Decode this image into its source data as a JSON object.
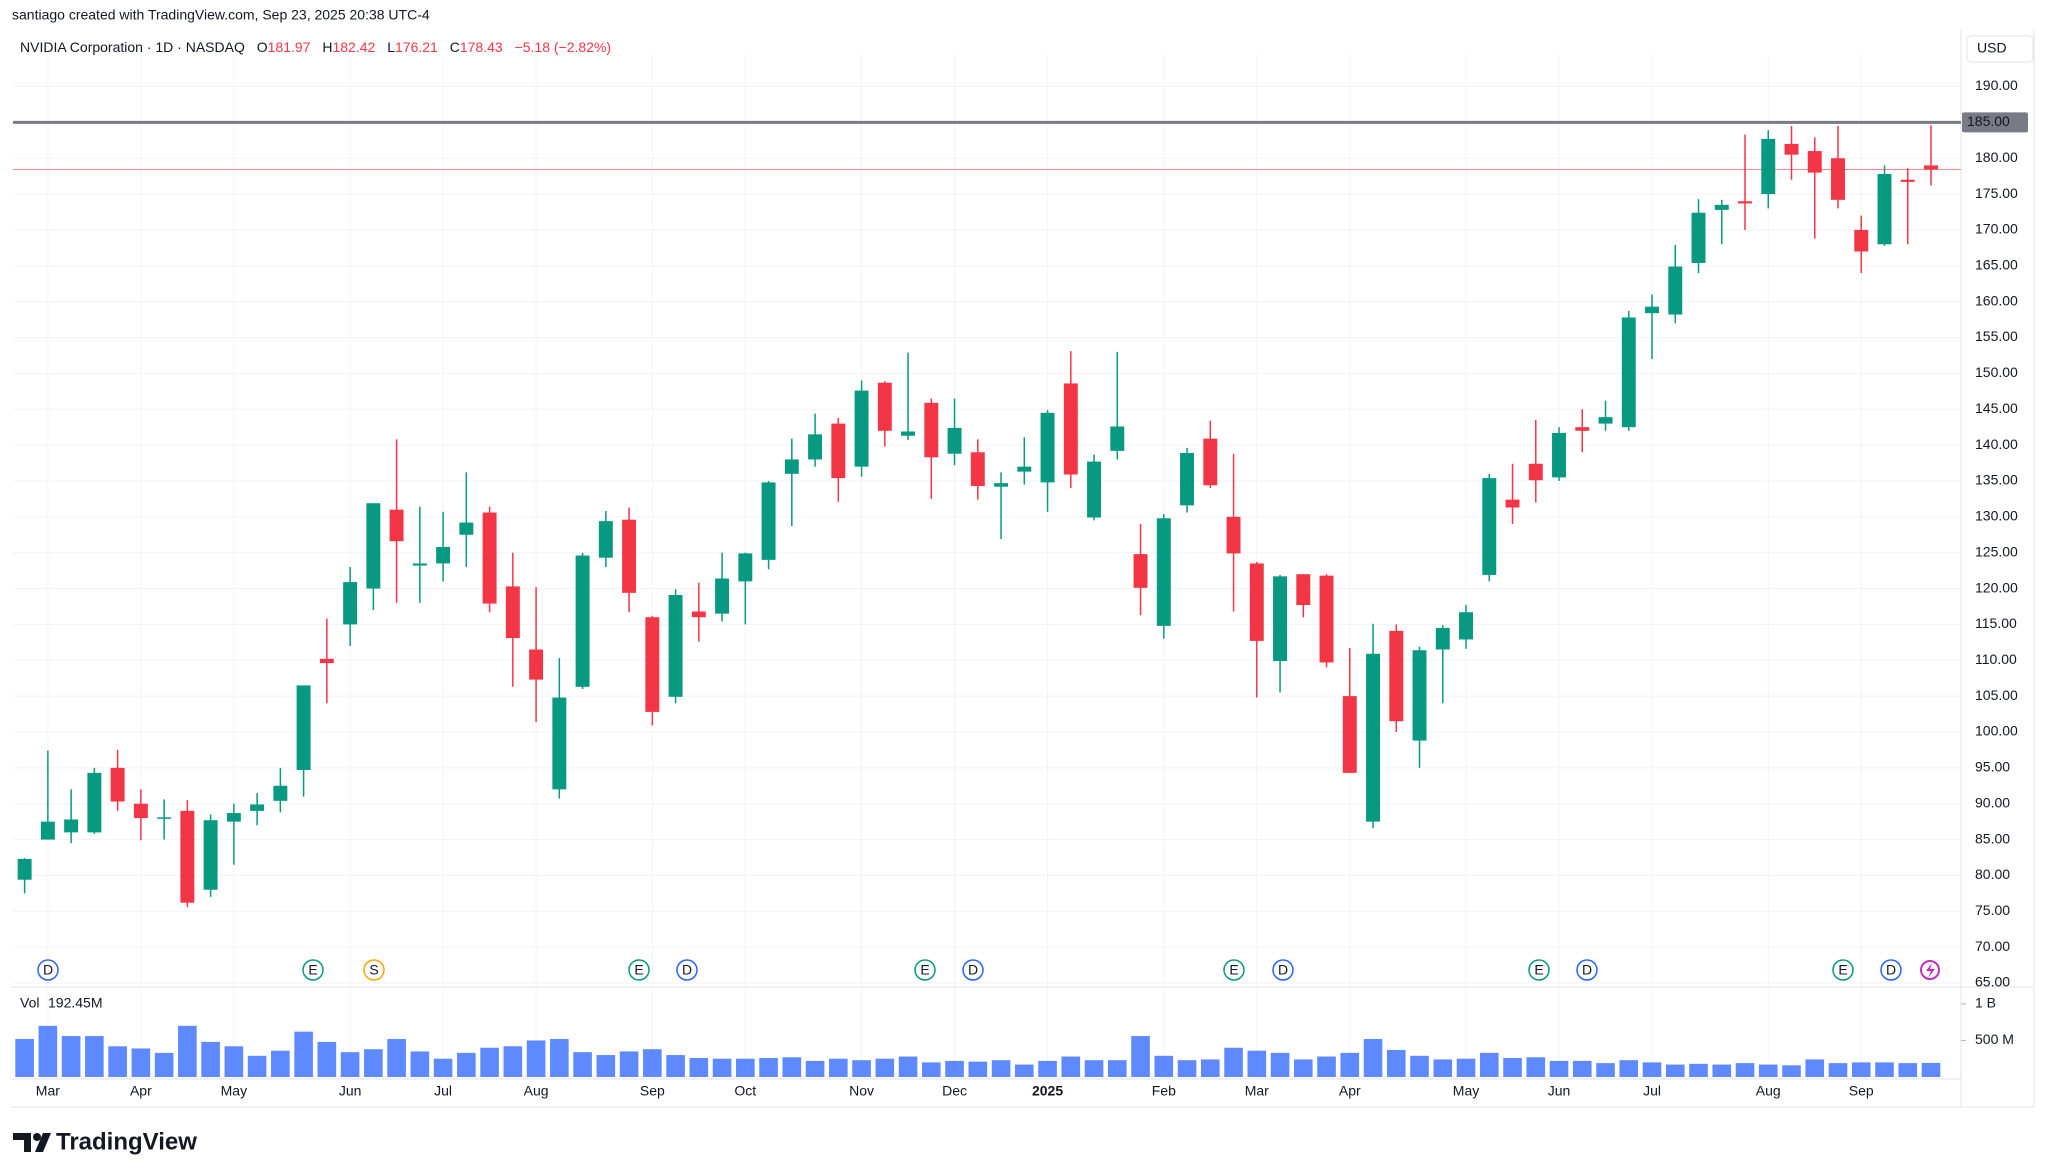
{
  "header": "santiago created with TradingView.com, Sep 23, 2025 20:38 UTC-4",
  "footer": {
    "brand": "TradingView"
  },
  "chart_data": [
    {
      "type": "candlestick",
      "currency": "USD",
      "legend": {
        "symbol": "NVIDIA Corporation · 1D · NASDAQ",
        "fields": [
          {
            "label": "O",
            "value": 181.97
          },
          {
            "label": "H",
            "value": 182.42
          },
          {
            "label": "L",
            "value": 176.21
          },
          {
            "label": "C",
            "value": 178.43
          }
        ],
        "change": "−5.18 (−2.82%)"
      },
      "up_color": "#089981",
      "down_color": "#f23645",
      "grid": true,
      "hline": {
        "value": 185,
        "label": "185.00",
        "color": "#787b86"
      },
      "ylim": [
        65,
        193
      ],
      "yticks": [
        {
          "value": 65,
          "label": "65.00"
        },
        {
          "value": 70,
          "label": "70.00"
        },
        {
          "value": 75,
          "label": "75.00"
        },
        {
          "value": 80,
          "label": "80.00"
        },
        {
          "value": 85,
          "label": "85.00"
        },
        {
          "value": 90,
          "label": "90.00"
        },
        {
          "value": 95,
          "label": "95.00"
        },
        {
          "value": 100,
          "label": "100.00"
        },
        {
          "value": 105,
          "label": "105.00"
        },
        {
          "value": 110,
          "label": "110.00"
        },
        {
          "value": 115,
          "label": "115.00"
        },
        {
          "value": 120,
          "label": "120.00"
        },
        {
          "value": 125,
          "label": "125.00"
        },
        {
          "value": 130,
          "label": "130.00"
        },
        {
          "value": 135,
          "label": "135.00"
        },
        {
          "value": 140,
          "label": "140.00"
        },
        {
          "value": 145,
          "label": "145.00"
        },
        {
          "value": 150,
          "label": "150.00"
        },
        {
          "value": 155,
          "label": "155.00"
        },
        {
          "value": 160,
          "label": "160.00"
        },
        {
          "value": 165,
          "label": "165.00"
        },
        {
          "value": 170,
          "label": "170.00"
        },
        {
          "value": 175,
          "label": "175.00"
        },
        {
          "value": 180,
          "label": "180.00"
        },
        {
          "value": 185,
          "label": "185.00"
        },
        {
          "value": 190,
          "label": "190.00"
        }
      ],
      "events": [
        {
          "label": "D",
          "color": "#2962ff"
        },
        {
          "label": "E",
          "color": "#089981"
        },
        {
          "label": "S",
          "color": "#f7a600"
        },
        {
          "label": "E",
          "color": "#089981"
        },
        {
          "label": "D",
          "color": "#2962ff"
        },
        {
          "label": "E",
          "color": "#089981"
        },
        {
          "label": "D",
          "color": "#2962ff"
        },
        {
          "label": "E",
          "color": "#089981"
        },
        {
          "label": "D",
          "color": "#2962ff"
        },
        {
          "label": "E",
          "color": "#089981"
        },
        {
          "label": "D",
          "color": "#2962ff"
        },
        {
          "label": "E",
          "color": "#089981"
        },
        {
          "label": "D",
          "color": "#2962ff"
        }
      ],
      "categories": [
        null,
        "Mar",
        null,
        null,
        null,
        "Apr",
        null,
        null,
        null,
        "May",
        null,
        null,
        null,
        null,
        "Jun",
        null,
        null,
        null,
        "Jul",
        null,
        null,
        null,
        "Aug",
        null,
        null,
        null,
        null,
        "Sep",
        null,
        null,
        null,
        "Oct",
        null,
        null,
        null,
        null,
        "Nov",
        null,
        null,
        null,
        "Dec",
        null,
        null,
        null,
        "2025",
        null,
        null,
        null,
        null,
        "Feb",
        null,
        null,
        null,
        "Mar",
        null,
        null,
        null,
        "Apr",
        null,
        null,
        null,
        null,
        "May",
        null,
        null,
        null,
        "Jun",
        null,
        null,
        null,
        "Jul",
        null,
        null,
        null,
        null,
        "Aug",
        null,
        null,
        null,
        "Sep",
        null,
        null,
        null
      ],
      "values": [
        [
          79.4,
          82.4,
          77.5,
          82.3
        ],
        [
          85,
          97.4,
          85,
          87.5
        ],
        [
          86,
          92,
          84.5,
          87.8
        ],
        [
          86,
          95,
          85.8,
          94.3
        ],
        [
          95,
          97.5,
          89,
          90.3
        ],
        [
          90,
          92,
          84.9,
          88
        ],
        [
          88,
          90.6,
          85,
          88.1
        ],
        [
          89,
          90.5,
          75.6,
          76.2
        ],
        [
          78,
          88.5,
          77,
          87.7
        ],
        [
          87.5,
          90,
          81.5,
          88.7
        ],
        [
          89,
          91.5,
          87,
          89.9
        ],
        [
          90.4,
          95,
          88.8,
          92.5
        ],
        [
          94.7,
          106.3,
          91,
          106.5
        ],
        [
          110.2,
          115.8,
          104,
          109.6
        ],
        [
          115,
          123,
          112,
          120.9
        ],
        [
          120,
          131.8,
          117,
          131.9
        ],
        [
          131,
          140.8,
          118,
          126.6
        ],
        [
          123.2,
          131.4,
          118,
          123.5
        ],
        [
          123.5,
          130.7,
          121,
          125.8
        ],
        [
          127.5,
          136.2,
          123,
          129.2
        ],
        [
          130.6,
          131.4,
          116.7,
          117.9
        ],
        [
          120.3,
          125,
          106.3,
          113.1
        ],
        [
          111.5,
          120.2,
          101.4,
          107.3
        ],
        [
          92,
          110.3,
          90.7,
          104.8
        ],
        [
          106.3,
          125,
          106,
          124.6
        ],
        [
          124.3,
          130.8,
          123,
          129.4
        ],
        [
          129.6,
          131.3,
          116.7,
          119.4
        ],
        [
          116,
          116.2,
          100.9,
          102.8
        ],
        [
          104.9,
          119.9,
          104,
          119.1
        ],
        [
          116.8,
          120.8,
          112.6,
          116
        ],
        [
          116.5,
          125,
          115.4,
          121.4
        ],
        [
          121,
          125,
          115,
          124.9
        ],
        [
          124,
          135,
          122.7,
          134.8
        ],
        [
          136,
          140.9,
          128.7,
          138
        ],
        [
          138,
          144.4,
          137,
          141.5
        ],
        [
          143,
          143.8,
          132.1,
          135.4
        ],
        [
          137,
          149,
          135.6,
          147.6
        ],
        [
          148.7,
          148.9,
          139.8,
          142
        ],
        [
          141.3,
          152.9,
          140.7,
          141.9
        ],
        [
          145.9,
          146.5,
          132.5,
          138.3
        ],
        [
          138.8,
          146.5,
          137.2,
          142.4
        ],
        [
          139,
          140.8,
          132.4,
          134.3
        ],
        [
          134.2,
          136.2,
          126.9,
          134.7
        ],
        [
          136.3,
          141.1,
          134.5,
          137
        ],
        [
          134.8,
          144.9,
          130.7,
          144.5
        ],
        [
          148.6,
          153.1,
          134,
          135.9
        ],
        [
          129.9,
          138.7,
          129.5,
          137.7
        ],
        [
          139.2,
          153,
          138,
          142.6
        ],
        [
          124.8,
          129,
          116.3,
          120.1
        ],
        [
          114.8,
          130.4,
          113,
          129.8
        ],
        [
          131.6,
          139.6,
          130.6,
          138.9
        ],
        [
          140.9,
          143.4,
          134,
          134.4
        ],
        [
          130,
          138.8,
          116.8,
          124.9
        ],
        [
          123.5,
          123.7,
          104.8,
          112.7
        ],
        [
          109.9,
          121.9,
          105.5,
          121.7
        ],
        [
          122,
          122,
          116,
          117.7
        ],
        [
          121.8,
          122,
          109,
          109.7
        ],
        [
          105,
          111.7,
          94.3,
          94.3
        ],
        [
          87.5,
          115.1,
          86.6,
          110.9
        ],
        [
          114.1,
          115,
          100,
          101.5
        ],
        [
          98.8,
          111.9,
          95,
          111.4
        ],
        [
          111.5,
          114.9,
          104,
          114.5
        ],
        [
          112.9,
          117.7,
          111.6,
          116.7
        ],
        [
          121.9,
          136,
          121,
          135.4
        ],
        [
          132.4,
          137.4,
          129,
          131.3
        ],
        [
          137.4,
          143.5,
          132,
          135.1
        ],
        [
          135.5,
          142.5,
          135,
          141.7
        ],
        [
          142.5,
          145,
          139,
          142
        ],
        [
          143,
          146.2,
          142,
          143.9
        ],
        [
          142.5,
          158.7,
          142,
          157.8
        ],
        [
          158.4,
          161,
          152,
          159.3
        ],
        [
          158.2,
          167.9,
          157,
          164.9
        ],
        [
          165.4,
          174.3,
          164,
          172.4
        ],
        [
          172.8,
          174.2,
          168,
          173.5
        ],
        [
          174,
          183.3,
          170,
          173.7
        ],
        [
          175,
          183.9,
          173,
          182.7
        ],
        [
          182,
          184.5,
          177,
          180.5
        ],
        [
          181,
          182.9,
          168.8,
          178
        ],
        [
          180,
          184.5,
          173,
          174.2
        ],
        [
          170,
          172,
          164,
          167
        ],
        [
          168,
          179,
          167.8,
          177.8
        ],
        [
          177,
          178.6,
          168,
          176.7
        ],
        [
          179,
          184.6,
          176.2,
          178.43
        ]
      ]
    },
    {
      "type": "bar",
      "name": "Vol",
      "value_label": "192.45M",
      "color": "#2962ff",
      "ylim": [
        0,
        1190
      ],
      "yticks": [
        {
          "value": 500,
          "label": "500 M"
        },
        {
          "value": 1000,
          "label": "1 B"
        }
      ],
      "values": [
        520,
        700,
        560,
        560,
        420,
        390,
        330,
        700,
        480,
        420,
        290,
        360,
        620,
        480,
        340,
        380,
        520,
        350,
        250,
        330,
        400,
        420,
        500,
        520,
        340,
        300,
        350,
        380,
        300,
        260,
        250,
        250,
        260,
        270,
        220,
        250,
        230,
        250,
        280,
        200,
        220,
        210,
        230,
        170,
        220,
        280,
        230,
        230,
        560,
        290,
        230,
        240,
        400,
        360,
        330,
        240,
        280,
        330,
        520,
        370,
        290,
        240,
        250,
        330,
        260,
        270,
        220,
        220,
        190,
        230,
        200,
        170,
        180,
        170,
        190,
        170,
        160,
        240,
        190,
        200,
        200,
        190,
        192.45
      ]
    }
  ]
}
